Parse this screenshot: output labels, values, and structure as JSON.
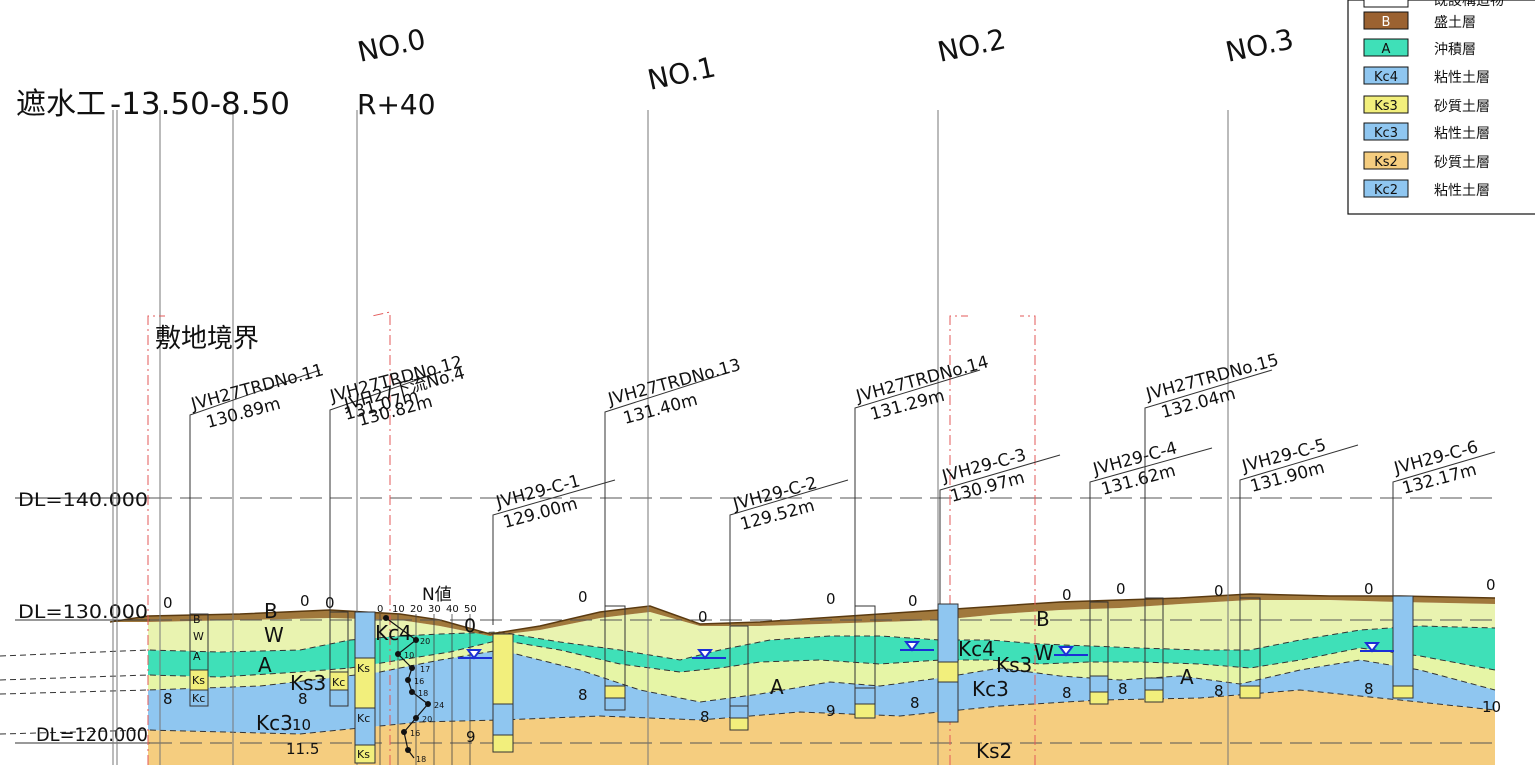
{
  "header": {
    "title_part1": "遮水工",
    "title_part2": "-13.50-8.50",
    "station_note": "R+40",
    "boundary_label": "敷地境界",
    "nvalue_label": "N値"
  },
  "stations": [
    {
      "label": "NO.0"
    },
    {
      "label": "NO.1"
    },
    {
      "label": "NO.2"
    },
    {
      "label": "NO.3"
    }
  ],
  "datum_lines": [
    {
      "label": "DL=140.000"
    },
    {
      "label": "DL=130.000"
    },
    {
      "label": "DL=120.000"
    }
  ],
  "legend": {
    "items": [
      {
        "code": "",
        "name": "既設構造物",
        "color": "#ffffff"
      },
      {
        "code": "B",
        "name": "盛土層",
        "color": "#9b6231"
      },
      {
        "code": "A",
        "name": "沖積層",
        "color": "#3fe0b8"
      },
      {
        "code": "Kc4",
        "name": "粘性土層",
        "color": "#8fc6f0"
      },
      {
        "code": "Ks3",
        "name": "砂質土層",
        "color": "#f2ef7c"
      },
      {
        "code": "Kc3",
        "name": "粘性土層",
        "color": "#8fc6f0"
      },
      {
        "code": "Ks2",
        "name": "砂質土層",
        "color": "#f5cd7f"
      },
      {
        "code": "Kc2",
        "name": "粘性土層",
        "color": "#8fc6f0"
      }
    ]
  },
  "boreholes": [
    {
      "name": "JVH27TRDNo.11",
      "elev": "130.89m"
    },
    {
      "name": "JVH27TRDNo.12",
      "elev": "131.07m"
    },
    {
      "name": "JVH27下流No.4",
      "elev": "130.82m"
    },
    {
      "name": "JVH29-C-1",
      "elev": "129.00m"
    },
    {
      "name": "JVH27TRDNo.13",
      "elev": "131.40m"
    },
    {
      "name": "JVH29-C-2",
      "elev": "129.52m"
    },
    {
      "name": "JVH27TRDNo.14",
      "elev": "131.29m"
    },
    {
      "name": "JVH29-C-3",
      "elev": "130.97m"
    },
    {
      "name": "JVH29-C-4",
      "elev": "131.62m"
    },
    {
      "name": "JVH27TRDNo.15",
      "elev": "132.04m"
    },
    {
      "name": "JVH29-C-5",
      "elev": "131.90m"
    },
    {
      "name": "JVH29-C-6",
      "elev": "132.17m"
    }
  ],
  "layer_labels": [
    "B",
    "W",
    "A",
    "Ks3",
    "Kc3",
    "Kc4",
    "Kc4",
    "Ks3",
    "Kc3",
    "A",
    "A",
    "W",
    "Ks2",
    "B"
  ],
  "depth_numbers": [
    "0",
    "0",
    "0",
    "0",
    "0",
    "0",
    "0",
    "0",
    "0",
    "0",
    "0",
    "0",
    "0",
    "8",
    "8",
    "8",
    "8",
    "8",
    "8",
    "8",
    "8",
    "8",
    "9",
    "9",
    "10",
    "10",
    "11.5"
  ],
  "nvalue_ticks": [
    "0",
    "10",
    "20",
    "30",
    "40",
    "50"
  ],
  "nvalue_points": [
    "20",
    "10",
    "17",
    "16",
    "18",
    "24",
    "20",
    "16",
    "18"
  ],
  "col_codes": [
    "B",
    "W",
    "A",
    "Ks",
    "Kc",
    "Kc",
    "Ks",
    "Kc",
    "Ks"
  ]
}
